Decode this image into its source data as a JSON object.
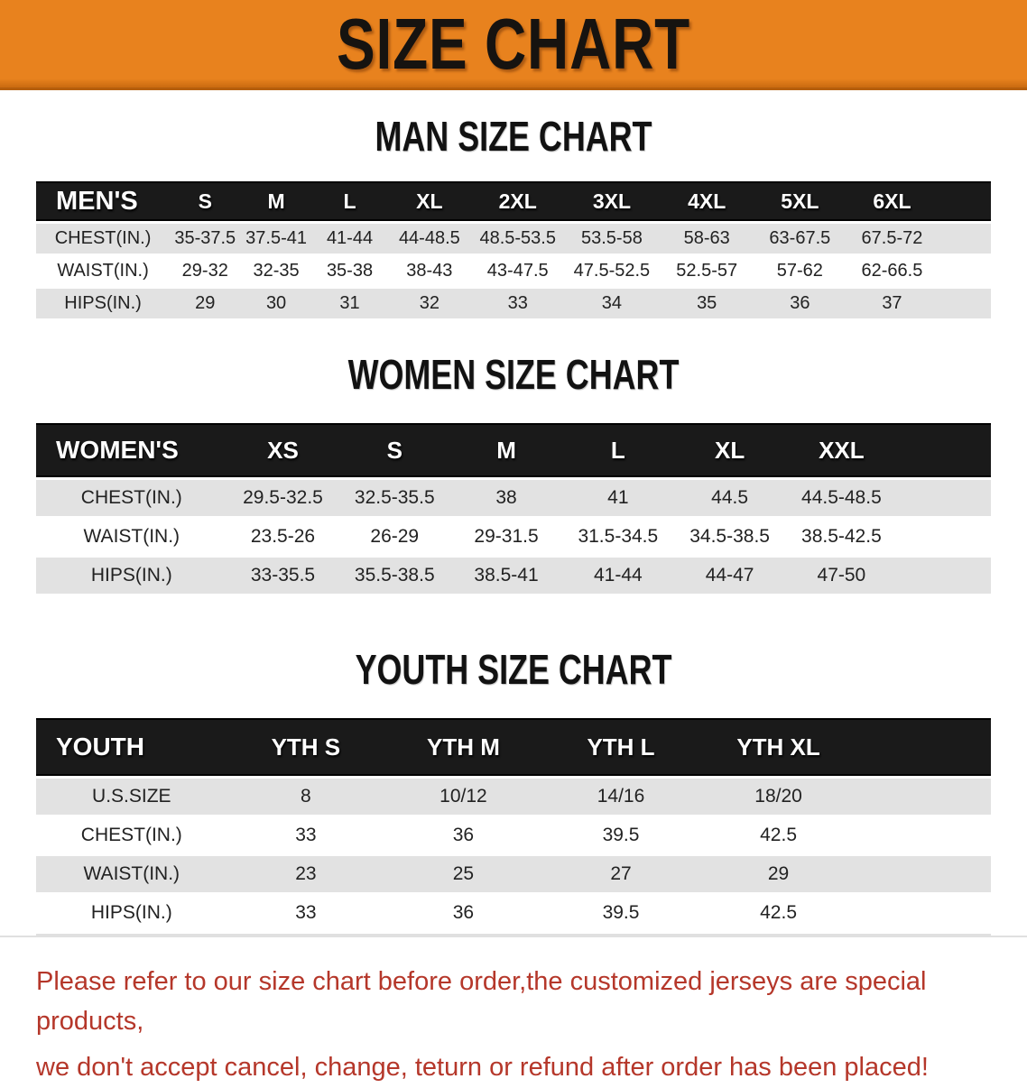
{
  "colors": {
    "banner-bg": "#e8821e",
    "title-color": "#161310",
    "bar-bg": "#1a1a1a",
    "row-gray": "#e2e2e2",
    "note-red": "#b5372a"
  },
  "banner": {
    "title": "SIZE CHART"
  },
  "sections": [
    {
      "heading": "MAN SIZE CHART",
      "table": {
        "header_label": "MEN'S",
        "columns": [
          "S",
          "M",
          "L",
          "XL",
          "2XL",
          "3XL",
          "4XL",
          "5XL",
          "6XL"
        ],
        "rows": [
          {
            "label": "CHEST(IN.)",
            "values": [
              "35-37.5",
              "37.5-41",
              "41-44",
              "44-48.5",
              "48.5-53.5",
              "53.5-58",
              "58-63",
              "63-67.5",
              "67.5-72"
            ]
          },
          {
            "label": "WAIST(IN.)",
            "values": [
              "29-32",
              "32-35",
              "35-38",
              "38-43",
              "43-47.5",
              "47.5-52.5",
              "52.5-57",
              "57-62",
              "62-66.5"
            ]
          },
          {
            "label": "HIPS(IN.)",
            "values": [
              "29",
              "30",
              "31",
              "32",
              "33",
              "34",
              "35",
              "36",
              "37"
            ]
          }
        ]
      }
    },
    {
      "heading": "WOMEN SIZE CHART",
      "table": {
        "header_label": "WOMEN'S",
        "columns": [
          "XS",
          "S",
          "M",
          "L",
          "XL",
          "XXL"
        ],
        "rows": [
          {
            "label": "CHEST(IN.)",
            "values": [
              "29.5-32.5",
              "32.5-35.5",
              "38",
              "41",
              "44.5",
              "44.5-48.5"
            ]
          },
          {
            "label": "WAIST(IN.)",
            "values": [
              "23.5-26",
              "26-29",
              "29-31.5",
              "31.5-34.5",
              "34.5-38.5",
              "38.5-42.5"
            ]
          },
          {
            "label": "HIPS(IN.)",
            "values": [
              "33-35.5",
              "35.5-38.5",
              "38.5-41",
              "41-44",
              "44-47",
              "47-50"
            ]
          }
        ]
      }
    },
    {
      "heading": "YOUTH SIZE CHART",
      "table": {
        "header_label": "YOUTH",
        "columns": [
          "YTH S",
          "YTH M",
          "YTH L",
          "YTH XL"
        ],
        "rows": [
          {
            "label": "U.S.SIZE",
            "values": [
              "8",
              "10/12",
              "14/16",
              "18/20"
            ]
          },
          {
            "label": "CHEST(IN.)",
            "values": [
              "33",
              "36",
              "39.5",
              "42.5"
            ]
          },
          {
            "label": "WAIST(IN.)",
            "values": [
              "23",
              "25",
              "27",
              "29"
            ]
          },
          {
            "label": "HIPS(IN.)",
            "values": [
              "33",
              "36",
              "39.5",
              "42.5"
            ]
          }
        ]
      }
    }
  ],
  "footer_note": {
    "line1": "Please refer to our size chart before order,the customized jerseys are special products,",
    "line2": "we don't accept cancel, change, teturn or refund after order has been placed!"
  }
}
